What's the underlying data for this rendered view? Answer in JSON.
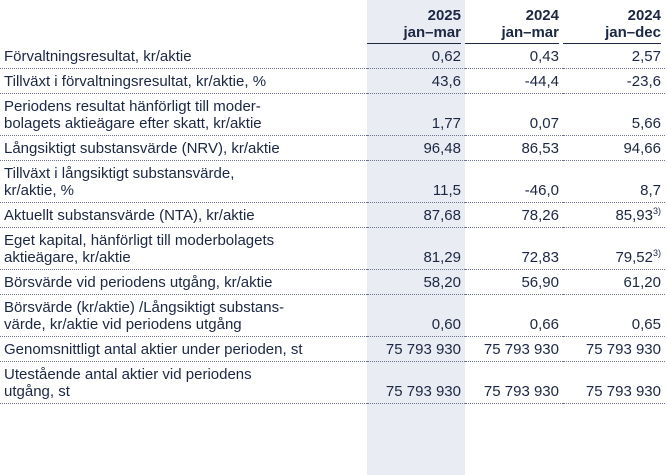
{
  "columns": [
    {
      "year": "2025",
      "period": "jan–mar"
    },
    {
      "year": "2024",
      "period": "jan–mar"
    },
    {
      "year": "2024",
      "period": "jan–dec"
    }
  ],
  "rows": [
    {
      "label_lines": [
        "Förvaltningsresultat, kr/aktie"
      ],
      "values": [
        "0,62",
        "0,43",
        "2,57"
      ],
      "notes": [
        "",
        "",
        ""
      ]
    },
    {
      "label_lines": [
        "Tillväxt i förvaltningsresultat, kr/aktie, %"
      ],
      "values": [
        "43,6",
        "-44,4",
        "-23,6"
      ],
      "notes": [
        "",
        "",
        ""
      ]
    },
    {
      "label_lines": [
        "Periodens resultat hänförligt till moder-",
        "bolagets aktieägare efter skatt, kr/aktie"
      ],
      "values": [
        "1,77",
        "0,07",
        "5,66"
      ],
      "notes": [
        "",
        "",
        ""
      ]
    },
    {
      "label_lines": [
        "Långsiktigt substansvärde (NRV), kr/aktie"
      ],
      "values": [
        "96,48",
        "86,53",
        "94,66"
      ],
      "notes": [
        "",
        "",
        ""
      ]
    },
    {
      "label_lines": [
        "Tillväxt i långsiktigt substansvärde,",
        "kr/aktie, %"
      ],
      "values": [
        "11,5",
        "-46,0",
        "8,7"
      ],
      "notes": [
        "",
        "",
        ""
      ]
    },
    {
      "label_lines": [
        "Aktuellt substansvärde (NTA), kr/aktie"
      ],
      "values": [
        "87,68",
        "78,26",
        "85,93"
      ],
      "notes": [
        "",
        "",
        "3)"
      ]
    },
    {
      "label_lines": [
        "Eget kapital, hänförligt till moderbolagets",
        "aktieägare, kr/aktie"
      ],
      "values": [
        "81,29",
        "72,83",
        "79,52"
      ],
      "notes": [
        "",
        "",
        "3)"
      ]
    },
    {
      "label_lines": [
        "Börsvärde vid periodens utgång, kr/aktie"
      ],
      "values": [
        "58,20",
        "56,90",
        "61,20"
      ],
      "notes": [
        "",
        "",
        ""
      ]
    },
    {
      "label_lines": [
        "Börsvärde (kr/aktie) /Långsiktigt substans-",
        "värde, kr/aktie vid periodens utgång"
      ],
      "values": [
        "0,60",
        "0,66",
        "0,65"
      ],
      "notes": [
        "",
        "",
        ""
      ]
    },
    {
      "label_lines": [
        "Genomsnittligt antal aktier under perioden, st"
      ],
      "values": [
        "75 793 930",
        "75 793 930",
        "75 793 930"
      ],
      "notes": [
        "",
        "",
        ""
      ]
    },
    {
      "label_lines": [
        "Utestående antal aktier vid periodens",
        "utgång, st"
      ],
      "values": [
        "75 793 930",
        "75 793 930",
        "75 793 930"
      ],
      "notes": [
        "",
        "",
        ""
      ]
    }
  ]
}
